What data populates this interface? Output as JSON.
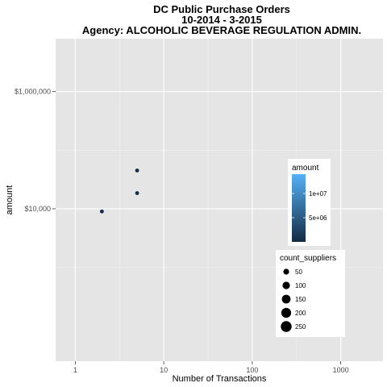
{
  "chart_data": {
    "type": "scatter",
    "title": [
      "DC Public Purchase Orders",
      "10-2014 - 3-2015",
      "Agency:  ALCOHOLIC BEVERAGE REGULATION ADMIN."
    ],
    "xlabel": "Number of Transactions",
    "ylabel": "amount",
    "x_scale": "log10",
    "y_scale": "log10",
    "xlim": [
      0.6,
      3000
    ],
    "ylim": [
      25,
      8000000
    ],
    "x_ticks": [
      {
        "value": 1,
        "label": "1"
      },
      {
        "value": 10,
        "label": "10"
      },
      {
        "value": 100,
        "label": "100"
      },
      {
        "value": 1000,
        "label": "1000"
      }
    ],
    "y_ticks": [
      {
        "value": 10000,
        "label": "$10,000"
      },
      {
        "value": 1000000,
        "label": "$1,000,000"
      }
    ],
    "grid": true,
    "points": [
      {
        "x": 2,
        "y": 9000,
        "size": 1,
        "color": "#132b43"
      },
      {
        "x": 5,
        "y": 18500,
        "size": 1,
        "color": "#132b43"
      },
      {
        "x": 5,
        "y": 45000,
        "size": 1,
        "color": "#132b43"
      }
    ],
    "color_legend": {
      "title": "amount",
      "low_color": "#132b43",
      "high_color": "#56b1f7",
      "range": [
        0,
        14000000
      ],
      "breaks": [
        {
          "value": 5000000,
          "label": "5e+06"
        },
        {
          "value": 10000000,
          "label": "1e+07"
        }
      ]
    },
    "size_legend": {
      "title": "count_suppliers",
      "entries": [
        {
          "value": 50,
          "label": "50"
        },
        {
          "value": 100,
          "label": "100"
        },
        {
          "value": 150,
          "label": "150"
        },
        {
          "value": 200,
          "label": "200"
        },
        {
          "value": 250,
          "label": "250"
        }
      ]
    },
    "legend_position": "right"
  }
}
